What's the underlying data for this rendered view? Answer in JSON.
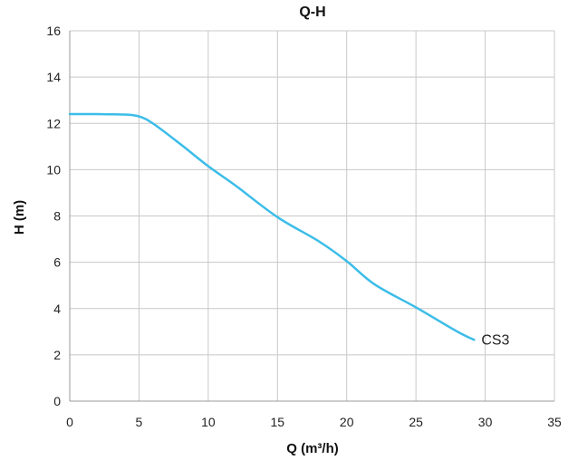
{
  "chart_data": {
    "type": "line",
    "title": "Q-H",
    "xlabel": "Q (m³/h)",
    "ylabel": "H (m)",
    "xlim": [
      0,
      35
    ],
    "ylim": [
      0,
      16
    ],
    "xticks": [
      0,
      5,
      10,
      15,
      20,
      25,
      30,
      35
    ],
    "yticks": [
      0,
      2,
      4,
      6,
      8,
      10,
      12,
      14,
      16
    ],
    "xtick_labels": [
      "0",
      "5",
      "10",
      "15",
      "20",
      "25",
      "30",
      "35"
    ],
    "ytick_labels": [
      "0",
      "2",
      "4",
      "6",
      "8",
      "10",
      "12",
      "14",
      "16"
    ],
    "grid": true,
    "legend": "none",
    "series": [
      {
        "name": "CS3",
        "label_position": "end",
        "color": "#3bbde8",
        "x": [
          0,
          2,
          4,
          5,
          6,
          8,
          10,
          12,
          15,
          18,
          20,
          22,
          25,
          28,
          29.2
        ],
        "y": [
          12.4,
          12.4,
          12.38,
          12.3,
          12.0,
          11.1,
          10.15,
          9.3,
          7.95,
          6.9,
          6.05,
          5.05,
          4.05,
          3.0,
          2.65
        ]
      }
    ]
  },
  "colors": {
    "grid": "#c8c8c8",
    "axis": "#999999",
    "line": "#3bbde8"
  }
}
